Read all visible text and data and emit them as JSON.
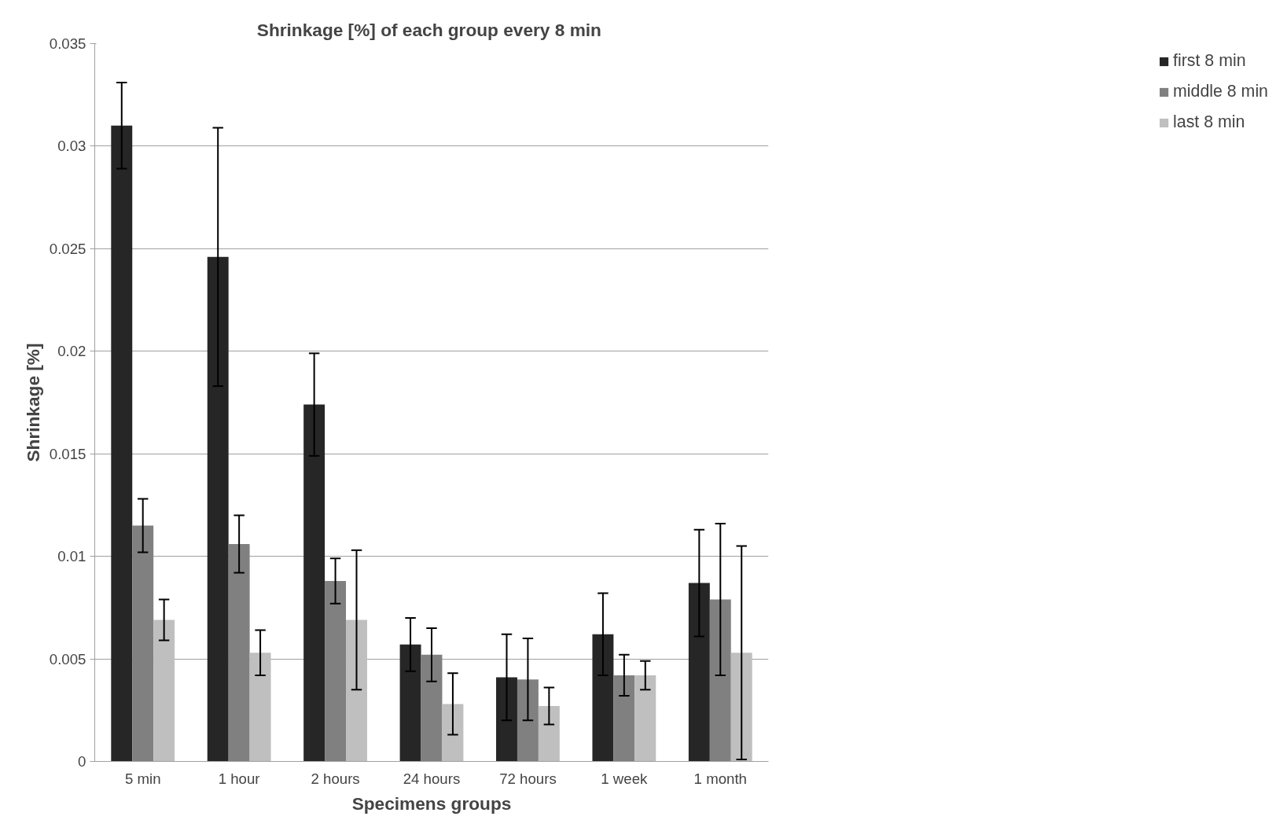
{
  "chart_data": {
    "type": "bar",
    "title": "Shrinkage [%] of each  group every 8 min",
    "xlabel": "Specimens groups",
    "ylabel": "Shrinkage [%]",
    "categories": [
      "5 min",
      "1 hour",
      "2 hours",
      "24 hours",
      "72 hours",
      "1 week",
      "1 month"
    ],
    "series": [
      {
        "name": "first 8 min",
        "color": "#262626",
        "values": [
          0.031,
          0.0246,
          0.0174,
          0.0057,
          0.0041,
          0.0062,
          0.0087
        ],
        "errors": [
          0.0021,
          0.0063,
          0.0025,
          0.0013,
          0.0021,
          0.002,
          0.0026
        ]
      },
      {
        "name": "middle 8 min",
        "color": "#808080",
        "values": [
          0.0115,
          0.0106,
          0.0088,
          0.0052,
          0.004,
          0.0042,
          0.0079
        ],
        "errors": [
          0.0013,
          0.0014,
          0.0011,
          0.0013,
          0.002,
          0.001,
          0.0037
        ]
      },
      {
        "name": "last 8 min",
        "color": "#bfbfbf",
        "values": [
          0.0069,
          0.0053,
          0.0069,
          0.0028,
          0.0027,
          0.0042,
          0.0053
        ],
        "errors": [
          0.001,
          0.0011,
          0.0034,
          0.0015,
          0.0009,
          0.0007,
          0.0052
        ]
      }
    ],
    "ylim": [
      0,
      0.035
    ],
    "yticks": [
      0,
      0.005,
      0.01,
      0.015,
      0.02,
      0.025,
      0.03,
      0.035
    ],
    "grid": "y",
    "legend": "right"
  }
}
